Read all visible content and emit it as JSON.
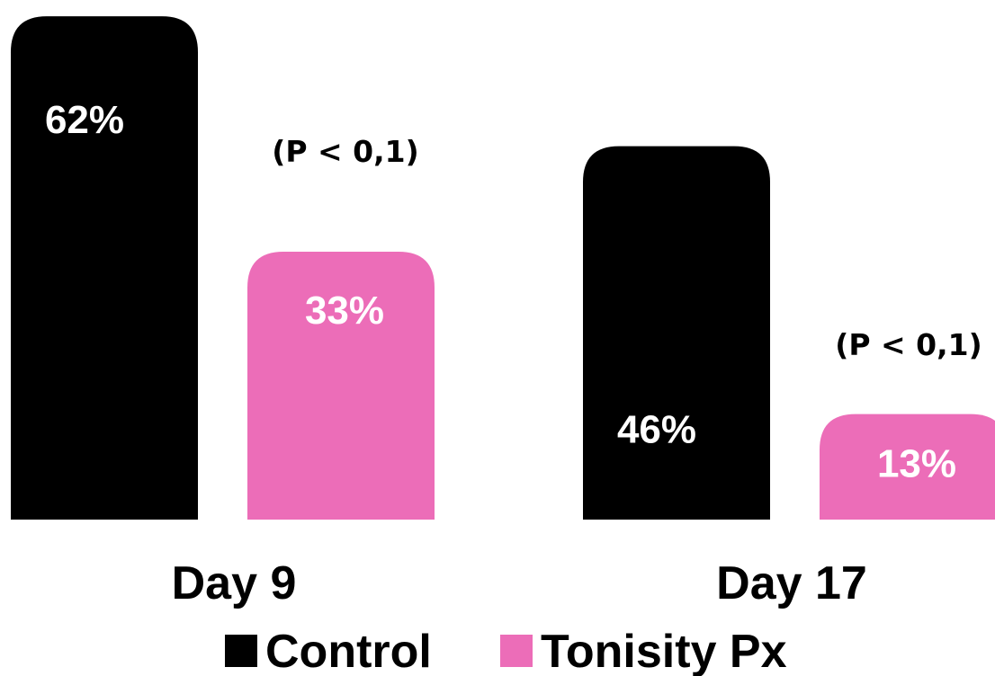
{
  "chart_data": {
    "type": "bar",
    "categories": [
      "Day 9",
      "Day 17"
    ],
    "series": [
      {
        "name": "Control",
        "values": [
          62,
          46
        ],
        "labels": [
          "62%",
          "46%"
        ],
        "color": "#000000"
      },
      {
        "name": "Tonisity Px",
        "values": [
          33,
          13
        ],
        "labels": [
          "33%",
          "13%"
        ],
        "color": "#ec6db8"
      }
    ],
    "annotations": [
      "(P < 0,1)",
      "(P < 0,1)"
    ],
    "legend_position": "bottom",
    "grid": false,
    "axes_visible": false
  }
}
